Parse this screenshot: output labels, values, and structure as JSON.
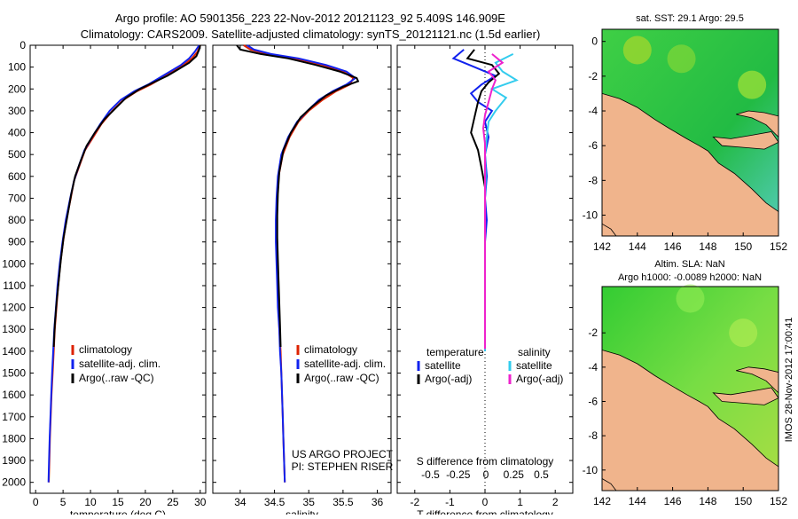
{
  "title": {
    "line1": "Argo profile: AO 5901356_223 22-Nov-2012 20121123_92 5.409S 146.909E",
    "line2": "Climatology: CARS2009. Satellite-adjusted climatology: synTS_20121121.nc (1.5d earlier)"
  },
  "watermark": "IMOS 28-Nov-2012 17:00:41",
  "project": {
    "line1": "US ARGO PROJECT",
    "line2": "PI: STEPHEN RISER"
  },
  "colors": {
    "climatology": "#dd2200",
    "satellite": "#1122ee",
    "argo": "#000000",
    "sal_satellite": "#33ccee",
    "sal_argo": "#ee22cc",
    "land": "#f0b48c"
  },
  "chart_data": [
    {
      "type": "line",
      "id": "temperature",
      "xlabel": "temperature (deg C)",
      "ylabel": "",
      "xlim": [
        -1,
        31
      ],
      "ylim": [
        0,
        2050
      ],
      "xticks": [
        0,
        5,
        10,
        15,
        20,
        25,
        30
      ],
      "yticks": [
        0,
        100,
        200,
        300,
        400,
        500,
        600,
        700,
        800,
        900,
        1000,
        1100,
        1200,
        1300,
        1400,
        1500,
        1600,
        1700,
        1800,
        1900,
        2000
      ],
      "legend": [
        "climatology",
        "satellite-adj. clim.",
        "Argo(..raw -QC)"
      ],
      "series": [
        {
          "key": "climatology",
          "points": [
            [
              30,
              0
            ],
            [
              29.5,
              30
            ],
            [
              28.5,
              60
            ],
            [
              27,
              90
            ],
            [
              25,
              120
            ],
            [
              23,
              150
            ],
            [
              21,
              180
            ],
            [
              18.5,
              210
            ],
            [
              16,
              250
            ],
            [
              14,
              300
            ],
            [
              12,
              360
            ],
            [
              10.5,
              420
            ],
            [
              9,
              480
            ],
            [
              8,
              550
            ],
            [
              7,
              620
            ],
            [
              6.4,
              700
            ],
            [
              5.6,
              800
            ],
            [
              5,
              900
            ],
            [
              4.5,
              1000
            ],
            [
              4.1,
              1100
            ],
            [
              3.8,
              1200
            ],
            [
              3.5,
              1300
            ],
            [
              3.3,
              1400
            ],
            [
              3.1,
              1500
            ],
            [
              2.9,
              1600
            ],
            [
              2.75,
              1700
            ],
            [
              2.6,
              1800
            ],
            [
              2.5,
              1900
            ],
            [
              2.4,
              2000
            ]
          ]
        },
        {
          "key": "satellite",
          "points": [
            [
              29.8,
              0
            ],
            [
              29,
              30
            ],
            [
              28,
              60
            ],
            [
              26.5,
              90
            ],
            [
              24.5,
              120
            ],
            [
              22.5,
              150
            ],
            [
              20.5,
              180
            ],
            [
              18,
              210
            ],
            [
              15.5,
              250
            ],
            [
              13.5,
              300
            ],
            [
              11.8,
              360
            ],
            [
              10.3,
              420
            ],
            [
              8.9,
              480
            ],
            [
              7.9,
              550
            ],
            [
              7,
              620
            ],
            [
              6.3,
              700
            ],
            [
              5.5,
              800
            ],
            [
              4.9,
              900
            ],
            [
              4.4,
              1000
            ],
            [
              4,
              1100
            ],
            [
              3.7,
              1200
            ],
            [
              3.4,
              1300
            ],
            [
              3.2,
              1400
            ],
            [
              3,
              1500
            ],
            [
              2.85,
              1600
            ],
            [
              2.7,
              1700
            ],
            [
              2.55,
              1800
            ],
            [
              2.45,
              1900
            ],
            [
              2.35,
              2000
            ]
          ]
        },
        {
          "key": "argo",
          "points": [
            [
              30,
              0
            ],
            [
              29.8,
              20
            ],
            [
              29.3,
              50
            ],
            [
              28,
              80
            ],
            [
              26,
              110
            ],
            [
              24,
              140
            ],
            [
              21.5,
              170
            ],
            [
              19,
              200
            ],
            [
              16.5,
              240
            ],
            [
              14.5,
              290
            ],
            [
              12.5,
              340
            ],
            [
              10.8,
              400
            ],
            [
              9.3,
              460
            ],
            [
              8.2,
              530
            ],
            [
              7.2,
              600
            ],
            [
              6.5,
              680
            ],
            [
              5.8,
              780
            ],
            [
              5.1,
              880
            ],
            [
              4.6,
              980
            ],
            [
              4.2,
              1080
            ],
            [
              3.8,
              1180
            ],
            [
              3.5,
              1280
            ],
            [
              3.3,
              1380
            ]
          ]
        }
      ]
    },
    {
      "type": "line",
      "id": "salinity",
      "xlabel": "salinity",
      "xlim": [
        33.6,
        36.2
      ],
      "ylim": [
        0,
        2050
      ],
      "xticks": [
        34,
        34.5,
        35,
        35.5,
        36
      ],
      "legend": [
        "climatology",
        "satellite-adj. clim.",
        "Argo(..raw -QC)"
      ],
      "series": [
        {
          "key": "climatology",
          "points": [
            [
              34.05,
              0
            ],
            [
              34.15,
              20
            ],
            [
              34.4,
              40
            ],
            [
              34.8,
              60
            ],
            [
              35.2,
              90
            ],
            [
              35.5,
              120
            ],
            [
              35.65,
              150
            ],
            [
              35.6,
              180
            ],
            [
              35.4,
              210
            ],
            [
              35.2,
              250
            ],
            [
              35,
              300
            ],
            [
              34.85,
              350
            ],
            [
              34.72,
              420
            ],
            [
              34.62,
              500
            ],
            [
              34.56,
              600
            ],
            [
              34.54,
              700
            ],
            [
              34.53,
              800
            ],
            [
              34.53,
              900
            ],
            [
              34.54,
              1000
            ],
            [
              34.55,
              1100
            ],
            [
              34.56,
              1200
            ],
            [
              34.57,
              1300
            ],
            [
              34.59,
              1400
            ],
            [
              34.6,
              1500
            ],
            [
              34.61,
              1600
            ],
            [
              34.62,
              1700
            ],
            [
              34.63,
              1800
            ],
            [
              34.64,
              1900
            ],
            [
              34.65,
              2000
            ]
          ]
        },
        {
          "key": "satellite",
          "points": [
            [
              34.1,
              0
            ],
            [
              34.2,
              20
            ],
            [
              34.45,
              40
            ],
            [
              34.85,
              60
            ],
            [
              35.25,
              90
            ],
            [
              35.55,
              120
            ],
            [
              35.68,
              150
            ],
            [
              35.55,
              180
            ],
            [
              35.35,
              210
            ],
            [
              35.15,
              250
            ],
            [
              34.98,
              300
            ],
            [
              34.83,
              350
            ],
            [
              34.7,
              420
            ],
            [
              34.6,
              500
            ],
            [
              34.55,
              600
            ],
            [
              34.53,
              700
            ],
            [
              34.52,
              800
            ],
            [
              34.52,
              900
            ],
            [
              34.53,
              1000
            ],
            [
              34.54,
              1100
            ],
            [
              34.55,
              1200
            ],
            [
              34.57,
              1300
            ],
            [
              34.58,
              1400
            ],
            [
              34.6,
              1500
            ],
            [
              34.61,
              1600
            ],
            [
              34.62,
              1700
            ],
            [
              34.63,
              1800
            ],
            [
              34.64,
              1900
            ],
            [
              34.65,
              2000
            ]
          ]
        },
        {
          "key": "argo",
          "points": [
            [
              33.95,
              0
            ],
            [
              34,
              20
            ],
            [
              34.3,
              40
            ],
            [
              34.7,
              60
            ],
            [
              35.1,
              90
            ],
            [
              35.45,
              120
            ],
            [
              35.7,
              150
            ],
            [
              35.72,
              165
            ],
            [
              35.5,
              190
            ],
            [
              35.25,
              230
            ],
            [
              35.05,
              280
            ],
            [
              34.88,
              330
            ],
            [
              34.74,
              400
            ],
            [
              34.63,
              480
            ],
            [
              34.57,
              580
            ],
            [
              34.55,
              680
            ],
            [
              34.54,
              780
            ],
            [
              34.54,
              880
            ],
            [
              34.55,
              980
            ],
            [
              34.56,
              1080
            ],
            [
              34.57,
              1180
            ],
            [
              34.58,
              1280
            ],
            [
              34.59,
              1380
            ]
          ]
        }
      ]
    },
    {
      "type": "line",
      "id": "difference",
      "xlabel": "T difference from climatology",
      "xlabel2": "S difference from climatology",
      "xlim": [
        -2.5,
        2.5
      ],
      "ylim": [
        0,
        2050
      ],
      "xticks": [
        -2,
        -1,
        0,
        1,
        2
      ],
      "xticks2": [
        -0.5,
        -0.25,
        0,
        0.25,
        0.5
      ],
      "legend_headers": [
        "temperature",
        "salinity"
      ],
      "legend": [
        "satellite",
        "Argo(-adj)",
        "satellite",
        "Argo(-adj)"
      ],
      "series": [
        {
          "key": "satellite",
          "points": [
            [
              -0.6,
              20
            ],
            [
              -0.9,
              60
            ],
            [
              -0.3,
              100
            ],
            [
              0.3,
              140
            ],
            [
              -0.1,
              180
            ],
            [
              -0.4,
              220
            ],
            [
              -0.2,
              260
            ],
            [
              0.2,
              300
            ],
            [
              0,
              350
            ],
            [
              0.1,
              420
            ],
            [
              0,
              500
            ],
            [
              0.05,
              600
            ],
            [
              0,
              700
            ],
            [
              0.05,
              800
            ],
            [
              0,
              900
            ],
            [
              0,
              1000
            ],
            [
              0,
              1100
            ],
            [
              0,
              1200
            ],
            [
              0,
              1300
            ],
            [
              0,
              1400
            ]
          ]
        },
        {
          "key": "argo",
          "points": [
            [
              -0.3,
              20
            ],
            [
              -0.5,
              60
            ],
            [
              0.2,
              90
            ],
            [
              0.4,
              130
            ],
            [
              0.1,
              170
            ],
            [
              -0.1,
              210
            ],
            [
              -0.2,
              260
            ],
            [
              -0.3,
              330
            ],
            [
              -0.4,
              400
            ],
            [
              -0.2,
              480
            ],
            [
              -0.1,
              560
            ],
            [
              0,
              650
            ],
            [
              0,
              750
            ],
            [
              0,
              850
            ],
            [
              0,
              950
            ],
            [
              0,
              1050
            ],
            [
              0,
              1150
            ],
            [
              0,
              1250
            ],
            [
              0,
              1350
            ],
            [
              0,
              1390
            ]
          ]
        },
        {
          "key": "sal_satellite",
          "points": [
            [
              0.8,
              40
            ],
            [
              0.3,
              80
            ],
            [
              0.5,
              120
            ],
            [
              0.9,
              160
            ],
            [
              0.2,
              200
            ],
            [
              0.6,
              240
            ],
            [
              0.3,
              300
            ],
            [
              0.1,
              350
            ],
            [
              0.05,
              420
            ],
            [
              0,
              500
            ],
            [
              0.02,
              600
            ],
            [
              0,
              700
            ],
            [
              0,
              800
            ],
            [
              0,
              900
            ],
            [
              0,
              1000
            ],
            [
              0,
              1100
            ],
            [
              0,
              1200
            ],
            [
              0,
              1300
            ],
            [
              0,
              1400
            ]
          ]
        },
        {
          "key": "sal_argo",
          "points": [
            [
              0.2,
              40
            ],
            [
              0.5,
              80
            ],
            [
              0.1,
              120
            ],
            [
              0.3,
              160
            ],
            [
              0.2,
              200
            ],
            [
              0.1,
              260
            ],
            [
              0,
              320
            ],
            [
              -0.05,
              380
            ],
            [
              0,
              450
            ],
            [
              0,
              550
            ],
            [
              0,
              650
            ],
            [
              0,
              750
            ],
            [
              0,
              850
            ],
            [
              0,
              950
            ],
            [
              0,
              1050
            ],
            [
              0,
              1150
            ],
            [
              0,
              1250
            ],
            [
              0,
              1350
            ],
            [
              0,
              1390
            ]
          ]
        }
      ]
    },
    {
      "type": "heatmap",
      "id": "sst-map",
      "title": "sat. SST: 29.1  Argo: 29.5",
      "xlim": [
        142,
        152
      ],
      "ylim": [
        -11.2,
        0.7
      ],
      "xticks": [
        142,
        144,
        146,
        148,
        150,
        152
      ],
      "yticks": [
        0,
        -2,
        -4,
        -6,
        -8,
        -10
      ]
    },
    {
      "type": "heatmap",
      "id": "sla-map",
      "title": "Altim. SLA: NaN",
      "subtitle": "Argo h1000: -0.0089 h2000: NaN",
      "xlim": [
        142,
        152
      ],
      "ylim": [
        -11.2,
        0.7
      ],
      "xticks": [
        142,
        144,
        146,
        148,
        150,
        152
      ],
      "yticks": [
        -2,
        -4,
        -6,
        -8,
        -10
      ]
    }
  ]
}
